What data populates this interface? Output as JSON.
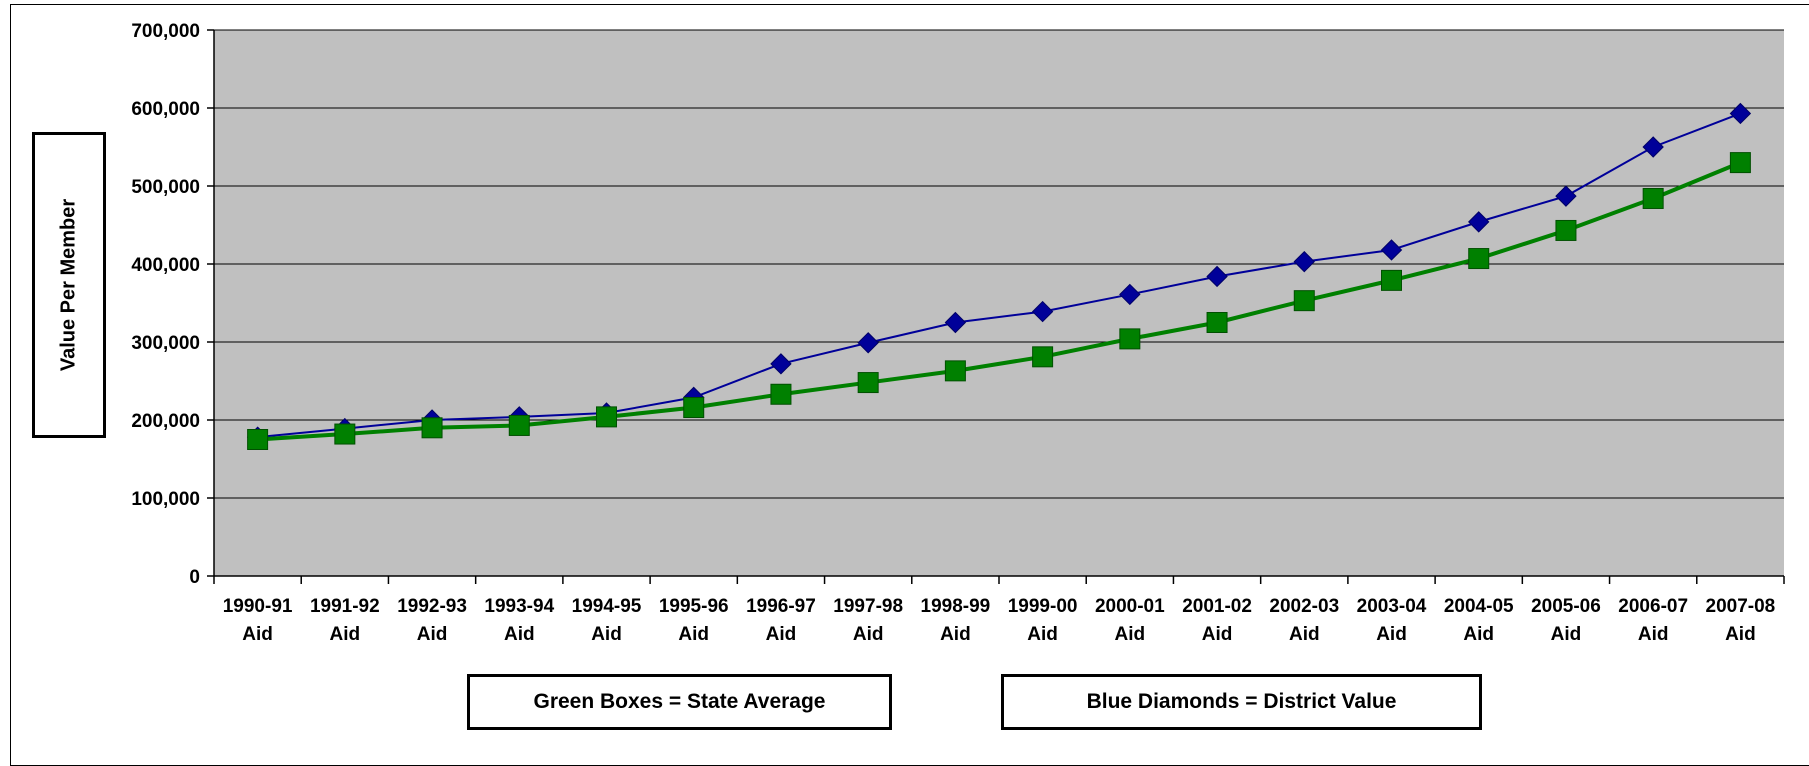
{
  "chart_data": {
    "type": "line",
    "title": "",
    "xlabel": "",
    "ylabel": "Value Per Member",
    "ylim": [
      0,
      700000
    ],
    "yticks": [
      "0",
      "100,000",
      "200,000",
      "300,000",
      "400,000",
      "500,000",
      "600,000",
      "700,000"
    ],
    "categories": [
      [
        "1990-91",
        "Aid"
      ],
      [
        "1991-92",
        "Aid"
      ],
      [
        "1992-93",
        "Aid"
      ],
      [
        "1993-94",
        "Aid"
      ],
      [
        "1994-95",
        "Aid"
      ],
      [
        "1995-96",
        "Aid"
      ],
      [
        "1996-97",
        "Aid"
      ],
      [
        "1997-98",
        "Aid"
      ],
      [
        "1998-99",
        "Aid"
      ],
      [
        "1999-00",
        "Aid"
      ],
      [
        "2000-01",
        "Aid"
      ],
      [
        "2001-02",
        "Aid"
      ],
      [
        "2002-03",
        "Aid"
      ],
      [
        "2003-04",
        "Aid"
      ],
      [
        "2004-05",
        "Aid"
      ],
      [
        "2005-06",
        "Aid"
      ],
      [
        "2006-07",
        "Aid"
      ],
      [
        "2007-08",
        "Aid"
      ]
    ],
    "grid": true,
    "plot_background": "#c0c0c0",
    "series": [
      {
        "key": "district",
        "marker": "diamond",
        "color": "#000099",
        "values": [
          178000,
          189000,
          200000,
          204000,
          209000,
          229000,
          272000,
          299000,
          325000,
          339000,
          361000,
          384000,
          403000,
          418000,
          454000,
          487000,
          550000,
          593000
        ]
      },
      {
        "key": "state",
        "marker": "square",
        "color": "#008000",
        "values": [
          175000,
          182000,
          190000,
          193000,
          204000,
          216000,
          233000,
          248000,
          263000,
          281000,
          304000,
          325000,
          353000,
          379000,
          407000,
          443000,
          484000,
          530000
        ]
      }
    ],
    "legend": {
      "state": "Green Boxes = State Average",
      "district": "Blue Diamonds = District Value",
      "placement": "bottom"
    }
  }
}
